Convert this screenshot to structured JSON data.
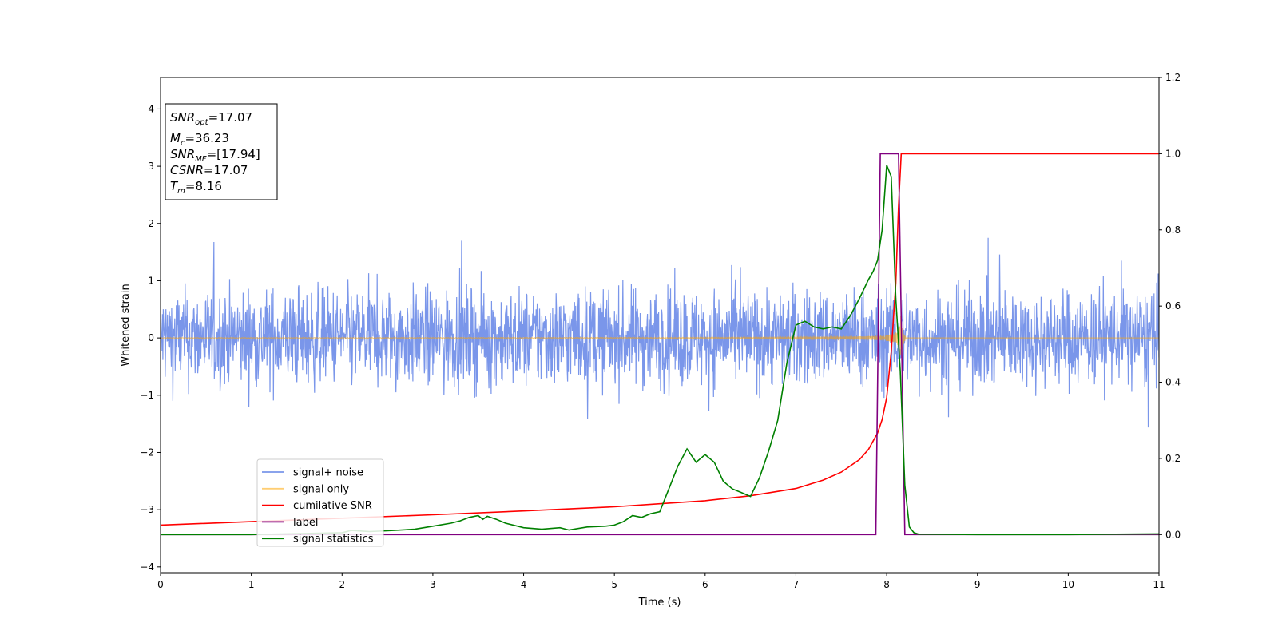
{
  "chart_data": {
    "type": "line",
    "xlabel": "Time (s)",
    "ylabel": "Whitened strain",
    "xlim": [
      0,
      11
    ],
    "ylim": [
      -4.1,
      4.55
    ],
    "y2lim": [
      -0.1,
      1.2
    ],
    "x_ticks": [
      0,
      1,
      2,
      3,
      4,
      5,
      6,
      7,
      8,
      9,
      10,
      11
    ],
    "y_ticks": [
      -4,
      -3,
      -2,
      -1,
      0,
      1,
      2,
      3,
      4
    ],
    "y2_ticks": [
      0.0,
      0.2,
      0.4,
      0.6,
      0.8,
      1.0,
      1.2
    ],
    "x_tick_labels": [
      "0",
      "1",
      "2",
      "3",
      "4",
      "5",
      "6",
      "7",
      "8",
      "9",
      "10",
      "11"
    ],
    "y_tick_labels": [
      "−4",
      "−3",
      "−2",
      "−1",
      "0",
      "1",
      "2",
      "3",
      "4"
    ],
    "y2_tick_labels": [
      "0.0",
      "0.2",
      "0.4",
      "0.6",
      "0.8",
      "1.0",
      "1.2"
    ],
    "grid": false,
    "legend_position": "lower-left",
    "annotation": {
      "position": "top-left",
      "lines": [
        {
          "base": "SNR",
          "sub": "opt",
          "value": "=17.07"
        },
        {
          "base": "M",
          "sub": "c",
          "value": "=36.23"
        },
        {
          "base": "SNR",
          "sub": "MF",
          "value": "=[17.94]"
        },
        {
          "base": "CSNR",
          "sub": "",
          "value": "=17.07"
        },
        {
          "base": "T",
          "sub": "m",
          "value": "=8.16"
        }
      ]
    },
    "series": [
      {
        "name": "signal+ noise",
        "axis": "left",
        "color": "#4169e1",
        "opacity": 0.7,
        "description": "dense stationary noise, roughly within ±1 with peaks near ±1.7",
        "noise_amplitude": 0.6,
        "noise_peak_range": [
          -2.05,
          1.75
        ]
      },
      {
        "name": "signal only",
        "axis": "left",
        "color": "#ffa500",
        "opacity": 0.55,
        "description": "inspiral chirp increasing in amplitude and frequency, merging near t=8.16",
        "merger_time": 8.16,
        "peak_amplitude": 0.55
      },
      {
        "name": "cumilative SNR",
        "axis": "right",
        "color": "#ff0000",
        "x": [
          0,
          1,
          2,
          3,
          4,
          5,
          5.5,
          6,
          6.5,
          7,
          7.3,
          7.5,
          7.7,
          7.8,
          7.9,
          7.95,
          8.0,
          8.05,
          8.1,
          8.13,
          8.16,
          8.2,
          9,
          10,
          11
        ],
        "y": [
          0.025,
          0.034,
          0.043,
          0.052,
          0.062,
          0.073,
          0.081,
          0.089,
          0.102,
          0.121,
          0.143,
          0.164,
          0.197,
          0.224,
          0.267,
          0.302,
          0.36,
          0.48,
          0.66,
          0.86,
          1.0,
          1.0,
          1.0,
          1.0,
          1.0
        ]
      },
      {
        "name": "label",
        "axis": "right",
        "color": "#800080",
        "x": [
          0,
          7.88,
          7.93,
          8.13,
          8.2,
          11
        ],
        "y": [
          0,
          0,
          1,
          1,
          0,
          0
        ]
      },
      {
        "name": "signal statistics",
        "axis": "right",
        "color": "#008000",
        "x": [
          0,
          1,
          2,
          2.1,
          2.3,
          2.5,
          2.8,
          3.0,
          3.2,
          3.3,
          3.4,
          3.5,
          3.55,
          3.6,
          3.7,
          3.8,
          4.0,
          4.2,
          4.4,
          4.5,
          4.7,
          4.9,
          5.0,
          5.1,
          5.2,
          5.3,
          5.4,
          5.5,
          5.6,
          5.7,
          5.8,
          5.9,
          6.0,
          6.1,
          6.2,
          6.3,
          6.4,
          6.5,
          6.6,
          6.7,
          6.8,
          6.9,
          7.0,
          7.1,
          7.2,
          7.3,
          7.4,
          7.5,
          7.6,
          7.7,
          7.8,
          7.85,
          7.9,
          7.95,
          8.0,
          8.05,
          8.1,
          8.15,
          8.2,
          8.25,
          8.3,
          8.35,
          8.4,
          9,
          10,
          11
        ],
        "y": [
          0.0,
          0.0,
          0.005,
          0.011,
          0.008,
          0.01,
          0.014,
          0.022,
          0.03,
          0.036,
          0.045,
          0.05,
          0.04,
          0.048,
          0.04,
          0.03,
          0.018,
          0.014,
          0.018,
          0.012,
          0.02,
          0.022,
          0.025,
          0.034,
          0.05,
          0.045,
          0.055,
          0.06,
          0.12,
          0.18,
          0.225,
          0.19,
          0.21,
          0.19,
          0.14,
          0.12,
          0.11,
          0.1,
          0.15,
          0.22,
          0.3,
          0.45,
          0.55,
          0.56,
          0.545,
          0.54,
          0.545,
          0.54,
          0.575,
          0.62,
          0.67,
          0.69,
          0.72,
          0.8,
          0.97,
          0.94,
          0.62,
          0.43,
          0.13,
          0.02,
          0.005,
          0.001,
          0.001,
          0.0,
          0.0,
          0.002
        ]
      }
    ]
  }
}
